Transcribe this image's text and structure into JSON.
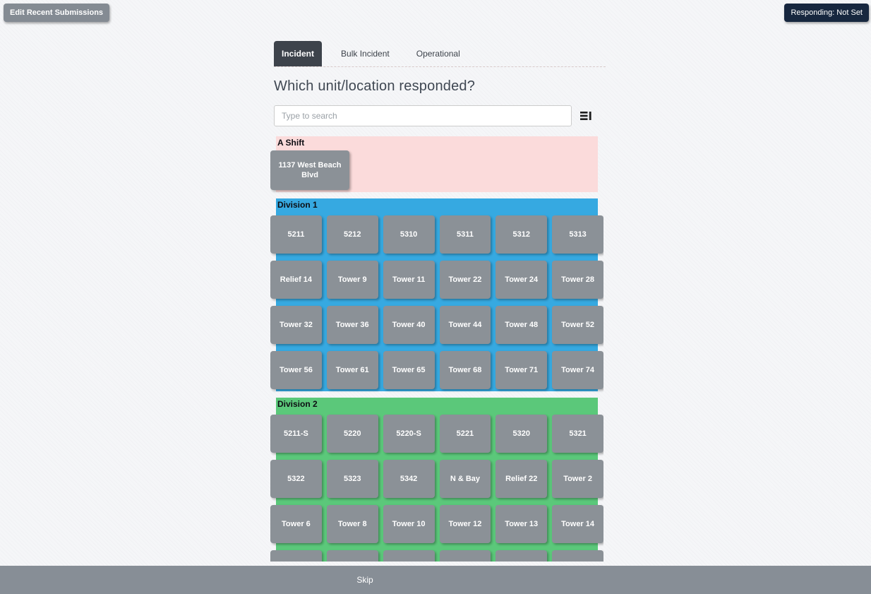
{
  "header": {
    "edit_recent_submissions": "Edit Recent Submissions",
    "responding_status": "Responding: Not Set"
  },
  "tabs": [
    {
      "label": "Incident",
      "active": true
    },
    {
      "label": "Bulk Incident",
      "active": false
    },
    {
      "label": "Operational",
      "active": false
    }
  ],
  "question": {
    "title": "Which unit/location responded?"
  },
  "search": {
    "placeholder": "Type to search",
    "icon": "list-view-toggle-icon"
  },
  "sections": [
    {
      "name": "A Shift",
      "background": "#fbdbdb",
      "layout": "free",
      "buttons": [
        "1137 West Beach Blvd"
      ]
    },
    {
      "name": "Division 1",
      "background": "#36a9e1",
      "layout": "grid",
      "buttons": [
        "5211",
        "5212",
        "5310",
        "5311",
        "5312",
        "5313",
        "Relief 14",
        "Tower 9",
        "Tower 11",
        "Tower 22",
        "Tower 24",
        "Tower 28",
        "Tower 32",
        "Tower 36",
        "Tower 40",
        "Tower 44",
        "Tower 48",
        "Tower 52",
        "Tower 56",
        "Tower 61",
        "Tower 65",
        "Tower 68",
        "Tower 71",
        "Tower 74"
      ]
    },
    {
      "name": "Division 2",
      "background": "#5bc87a",
      "layout": "grid",
      "buttons": [
        "5211-S",
        "5220",
        "5220-S",
        "5221",
        "5320",
        "5321",
        "5322",
        "5323",
        "5342",
        "N & Bay",
        "Relief 22",
        "Tower 2",
        "Tower 6",
        "Tower 8",
        "Tower 10",
        "Tower 12",
        "Tower 13",
        "Tower 14"
      ],
      "clipped_button_count": 6
    }
  ],
  "footer": {
    "skip_label": "Skip"
  },
  "colors": {
    "unit_button": "#8b9197",
    "footer_bar": "#878e96",
    "active_tab": "#3d434b",
    "responding_button": "#17273f",
    "edit_button": "#848b93",
    "a_shift_bg": "#fbdbdb",
    "division1_bg": "#36a9e1",
    "division2_bg": "#5bc87a"
  }
}
